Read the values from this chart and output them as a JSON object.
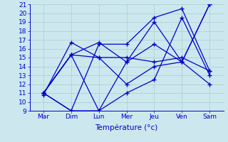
{
  "x_labels": [
    "Mar",
    "Dim",
    "Lun",
    "Mer",
    "Jeu",
    "Ven",
    "Sam"
  ],
  "x_positions": [
    0,
    1,
    2,
    3,
    4,
    5,
    6
  ],
  "series": [
    [
      10.8,
      16.7,
      15.0,
      15.0,
      14.5,
      15.0,
      13.5
    ],
    [
      11.0,
      15.3,
      16.7,
      14.5,
      16.5,
      14.5,
      12.0
    ],
    [
      11.0,
      15.3,
      15.0,
      12.0,
      14.0,
      14.5,
      21.0
    ],
    [
      11.0,
      15.3,
      9.0,
      11.0,
      12.5,
      19.5,
      13.0
    ],
    [
      11.0,
      9.0,
      9.0,
      14.5,
      19.0,
      14.5,
      21.0
    ],
    [
      11.0,
      9.0,
      16.5,
      16.5,
      19.5,
      20.5,
      13.5
    ]
  ],
  "line_color": "#0000cc",
  "marker": "+",
  "marker_size": 4,
  "linewidth": 0.9,
  "ylim": [
    9,
    21
  ],
  "yticks": [
    9,
    10,
    11,
    12,
    13,
    14,
    15,
    16,
    17,
    18,
    19,
    20,
    21
  ],
  "xlabel": "Température (°c)",
  "bg_color": "#cce8ee",
  "grid_color": "#aacccc",
  "label_fontsize": 6.5,
  "xlabel_fontsize": 7.5
}
